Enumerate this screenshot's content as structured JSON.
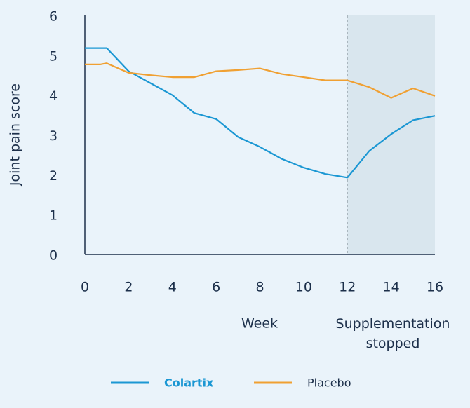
{
  "chart_data": {
    "type": "line",
    "x_label": "Week",
    "y_label": "Joint pain score",
    "annotation": "Supplementation stopped",
    "shaded_region": [
      12,
      16
    ],
    "xlim": [
      0,
      16
    ],
    "xticks": [
      0,
      2,
      4,
      6,
      8,
      10,
      12,
      14,
      16
    ],
    "ylim": [
      0,
      6
    ],
    "yticks": [
      0,
      1,
      2,
      3,
      4,
      5,
      6
    ],
    "grid": false,
    "legend": "bottom",
    "series": [
      {
        "name": "Colartix",
        "color": "#1b97d3",
        "x": [
          0,
          1,
          2,
          3,
          4,
          5,
          6,
          7,
          8,
          9,
          10,
          11,
          12,
          13,
          14,
          15,
          16
        ],
        "values": [
          5.18,
          5.18,
          4.6,
          4.3,
          4.0,
          3.55,
          3.4,
          2.95,
          2.7,
          2.4,
          2.18,
          2.02,
          1.93,
          2.6,
          3.02,
          3.37,
          3.48
        ]
      },
      {
        "name": "Placebo",
        "color": "#f0a032",
        "x": [
          0,
          0.7,
          1,
          2,
          3,
          4,
          5,
          6,
          7,
          8,
          9,
          10,
          11,
          12,
          13,
          14,
          15,
          16
        ],
        "values": [
          4.77,
          4.77,
          4.8,
          4.56,
          4.5,
          4.45,
          4.45,
          4.6,
          4.63,
          4.67,
          4.53,
          4.45,
          4.37,
          4.37,
          4.2,
          3.93,
          4.17,
          3.98
        ]
      }
    ]
  }
}
